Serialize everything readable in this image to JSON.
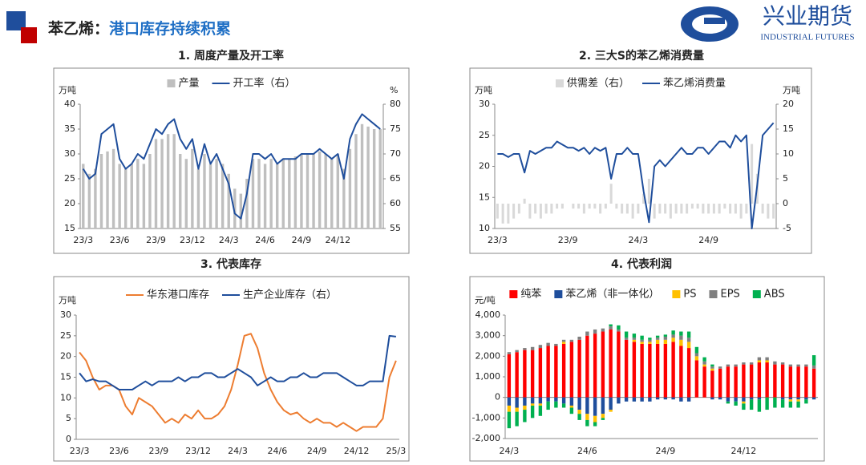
{
  "header": {
    "title_prefix": "苯乙烯：",
    "title": "港口库存持续积累",
    "logo_text": "兴业期货",
    "logo_subtext": "INDUSTRIAL FUTURES"
  },
  "chart_data": [
    {
      "type": "combo",
      "title": "1. 周度产量及开工率",
      "y_label": "万吨",
      "y2_label": "%",
      "categories": [
        "23/3",
        null,
        null,
        null,
        null,
        null,
        "23/6",
        null,
        null,
        null,
        null,
        null,
        "23/9",
        null,
        null,
        null,
        null,
        null,
        "23/12",
        null,
        null,
        null,
        null,
        null,
        "24/3",
        null,
        null,
        null,
        null,
        null,
        "24/6",
        null,
        null,
        null,
        null,
        null,
        "24/9",
        null,
        null,
        null,
        null,
        null,
        "24/12",
        null,
        null,
        null,
        null,
        null,
        null,
        null
      ],
      "series": [
        {
          "name": "产量",
          "type": "bar",
          "color": "#bfbfbf",
          "values": [
            28,
            26,
            27,
            30,
            30.5,
            31,
            28,
            27,
            28,
            29,
            28,
            30,
            33,
            33,
            34,
            34,
            30,
            29,
            31,
            27,
            30,
            28,
            29,
            28,
            26,
            23,
            22,
            25,
            29,
            29,
            28,
            29,
            28,
            29,
            29,
            29.5,
            30,
            30,
            30,
            30.5,
            30,
            29,
            30,
            27,
            31,
            34,
            36,
            35.5,
            35,
            35
          ]
        },
        {
          "name": "开工率（右）",
          "type": "line",
          "axis": "y2",
          "color": "#1f4e9c",
          "values": [
            67,
            65,
            66,
            74,
            75,
            76,
            69,
            67,
            68,
            70,
            69,
            72,
            75,
            74,
            76,
            77,
            73,
            71,
            73,
            67,
            72,
            68,
            70,
            67,
            64,
            58,
            57,
            62,
            70,
            70,
            69,
            70,
            68,
            69,
            69,
            69,
            70,
            70,
            70,
            71,
            70,
            69,
            70,
            65,
            73,
            76,
            78,
            77,
            76,
            75
          ]
        }
      ],
      "ylim": [
        15,
        40
      ],
      "yticks": [
        15,
        20,
        25,
        30,
        35,
        40
      ],
      "y2lim": [
        55,
        80
      ],
      "y2ticks": [
        55,
        60,
        65,
        70,
        75,
        80
      ]
    },
    {
      "type": "combo",
      "title": "2. 三大S的苯乙烯消费量",
      "y_label": "万吨",
      "y2_label": "万吨",
      "categories": [
        "23/3",
        null,
        null,
        null,
        null,
        null,
        null,
        null,
        null,
        null,
        null,
        null,
        null,
        "23/9",
        null,
        null,
        null,
        null,
        null,
        null,
        null,
        null,
        null,
        null,
        null,
        null,
        "24/3",
        null,
        null,
        null,
        null,
        null,
        null,
        null,
        null,
        null,
        null,
        null,
        null,
        "24/9",
        null,
        null,
        null,
        null,
        null,
        null,
        null,
        null,
        null,
        null,
        null,
        null
      ],
      "series": [
        {
          "name": "供需差（右）",
          "type": "bar",
          "axis": "y2",
          "color": "#d9d9d9",
          "values": [
            -3,
            -4,
            -4,
            -3,
            -2,
            1,
            -3,
            -2,
            -3,
            -2,
            -2,
            -1,
            -1,
            0,
            -1,
            -1,
            -2,
            -1,
            -1,
            -2,
            -1,
            4,
            -1,
            -2,
            -2,
            -3,
            -2,
            2,
            5,
            -3,
            -2,
            -2,
            -3,
            -2,
            -2,
            -2,
            -1,
            -1,
            -2,
            -2,
            -2,
            -2,
            -1,
            -2,
            -2,
            -3,
            -2,
            12,
            6,
            -2,
            -3,
            -3
          ]
        },
        {
          "name": "苯乙烯消费量",
          "type": "line",
          "color": "#1f4e9c",
          "values": [
            22,
            22,
            21.5,
            22,
            22,
            19,
            22.5,
            22,
            22.5,
            23,
            23,
            24,
            23.5,
            23,
            23,
            22.5,
            23,
            22,
            23,
            22.5,
            23,
            18,
            22,
            22,
            23,
            22,
            22,
            16,
            11,
            20,
            21,
            20,
            21,
            22,
            23,
            22,
            22,
            23,
            23,
            22,
            23,
            24,
            24,
            23,
            25,
            24,
            25,
            10,
            17,
            25,
            26,
            27
          ]
        }
      ],
      "ylim": [
        10,
        30
      ],
      "yticks": [
        10,
        15,
        20,
        25,
        30
      ],
      "y2lim": [
        -5,
        20
      ],
      "y2ticks": [
        -5,
        0,
        5,
        10,
        15,
        20
      ]
    },
    {
      "type": "line",
      "title": "3. 代表库存",
      "y_label": "万吨",
      "categories": [
        "23/3",
        null,
        null,
        null,
        null,
        null,
        "23/6",
        null,
        null,
        null,
        null,
        null,
        "23/9",
        null,
        null,
        null,
        null,
        null,
        "23/12",
        null,
        null,
        null,
        null,
        null,
        "24/3",
        null,
        null,
        null,
        null,
        null,
        "24/6",
        null,
        null,
        null,
        null,
        null,
        "24/9",
        null,
        null,
        null,
        null,
        null,
        "24/12",
        null,
        null,
        null,
        null,
        null,
        "25/3"
      ],
      "series": [
        {
          "name": "华东港口库存",
          "type": "line",
          "color": "#ed7d31",
          "values": [
            21,
            19,
            15,
            12,
            13,
            13,
            12,
            8,
            6,
            10,
            9,
            8,
            6,
            4,
            5,
            4,
            6,
            5,
            7,
            5,
            5,
            6,
            8,
            12,
            18,
            25,
            25.5,
            22,
            16,
            12,
            9,
            7,
            6,
            6.5,
            5,
            4,
            5,
            4,
            4,
            3,
            4,
            3,
            2,
            3,
            3,
            3,
            5,
            15,
            19
          ]
        },
        {
          "name": "生产企业库存（右）",
          "type": "line",
          "color": "#1f4e9c",
          "values": [
            16,
            14,
            14.5,
            14,
            14,
            13,
            12,
            12,
            12,
            13,
            14,
            13,
            14,
            14,
            14,
            15,
            14,
            15,
            15,
            16,
            16,
            15,
            15,
            16,
            17,
            16,
            15,
            13,
            14,
            15,
            14,
            14,
            15,
            15,
            16,
            15,
            15,
            16,
            16,
            16,
            15,
            14,
            13,
            13,
            14,
            14,
            14,
            25,
            24.8
          ]
        }
      ],
      "ylim": [
        0,
        30
      ],
      "yticks": [
        0,
        5,
        10,
        15,
        20,
        25,
        30
      ]
    },
    {
      "type": "bar",
      "stacked": true,
      "title": "4. 代表利润",
      "y_label": "元/吨",
      "categories": [
        "24/3",
        null,
        null,
        null,
        null,
        null,
        null,
        null,
        null,
        null,
        "24/6",
        null,
        null,
        null,
        null,
        null,
        null,
        null,
        null,
        null,
        "24/9",
        null,
        null,
        null,
        null,
        null,
        null,
        null,
        null,
        null,
        "24/12",
        null,
        null,
        null,
        null,
        null,
        null,
        null,
        null,
        null
      ],
      "series": [
        {
          "name": "纯苯",
          "type": "bar",
          "color": "#ff0000",
          "values": [
            2100,
            2200,
            2300,
            2300,
            2400,
            2500,
            2500,
            2600,
            2700,
            2800,
            3000,
            3100,
            3200,
            3300,
            3200,
            2800,
            2700,
            2600,
            2600,
            2600,
            2600,
            2700,
            2500,
            2400,
            1800,
            1500,
            1300,
            1400,
            1500,
            1500,
            1600,
            1600,
            1700,
            1700,
            1600,
            1600,
            1500,
            1500,
            1500,
            1400
          ]
        },
        {
          "name": "苯乙烯（非一体化）",
          "type": "bar",
          "color": "#1f4e9c",
          "values": [
            -400,
            -500,
            -400,
            -300,
            -300,
            -200,
            -200,
            -300,
            -400,
            -600,
            -800,
            -900,
            -800,
            -600,
            -300,
            -200,
            -200,
            -200,
            -200,
            -100,
            -100,
            -100,
            -200,
            -200,
            0,
            0,
            -100,
            -100,
            -200,
            -200,
            -200,
            -100,
            -100,
            0,
            0,
            -100,
            -100,
            -100,
            -100,
            -100
          ]
        },
        {
          "name": "PS",
          "type": "bar",
          "color": "#ffc000",
          "values": [
            -300,
            -200,
            -200,
            -100,
            -100,
            0,
            0,
            100,
            -100,
            -200,
            -300,
            -300,
            -200,
            -100,
            0,
            0,
            100,
            100,
            100,
            200,
            200,
            200,
            300,
            300,
            200,
            100,
            100,
            0,
            0,
            0,
            -100,
            0,
            100,
            100,
            0,
            0,
            -100,
            -100,
            0,
            0
          ]
        },
        {
          "name": "EPS",
          "type": "bar",
          "color": "#7f7f7f",
          "values": [
            100,
            100,
            100,
            150,
            150,
            150,
            100,
            100,
            100,
            150,
            200,
            200,
            150,
            150,
            100,
            100,
            100,
            100,
            100,
            100,
            150,
            150,
            200,
            200,
            150,
            150,
            100,
            100,
            100,
            100,
            100,
            100,
            150,
            150,
            150,
            100,
            100,
            100,
            100,
            150
          ]
        },
        {
          "name": "ABS",
          "type": "bar",
          "color": "#00b050",
          "values": [
            -800,
            -700,
            -600,
            -600,
            -500,
            -400,
            -300,
            -200,
            -300,
            -300,
            -300,
            -200,
            -100,
            100,
            200,
            300,
            200,
            200,
            100,
            100,
            100,
            200,
            200,
            300,
            300,
            200,
            100,
            0,
            -100,
            -200,
            -300,
            -500,
            -600,
            -600,
            -500,
            -400,
            -300,
            -300,
            -200,
            500
          ]
        }
      ],
      "ylim": [
        -2000,
        4000
      ],
      "yticks": [
        {
          "value": -2000,
          "label": "-2,000"
        },
        {
          "value": -1000,
          "label": "-1,000"
        },
        0,
        {
          "value": 1000,
          "label": "1,000"
        },
        {
          "value": 2000,
          "label": "2,000"
        },
        {
          "value": 3000,
          "label": "3,000"
        },
        {
          "value": 4000,
          "label": "4,000"
        }
      ]
    }
  ]
}
